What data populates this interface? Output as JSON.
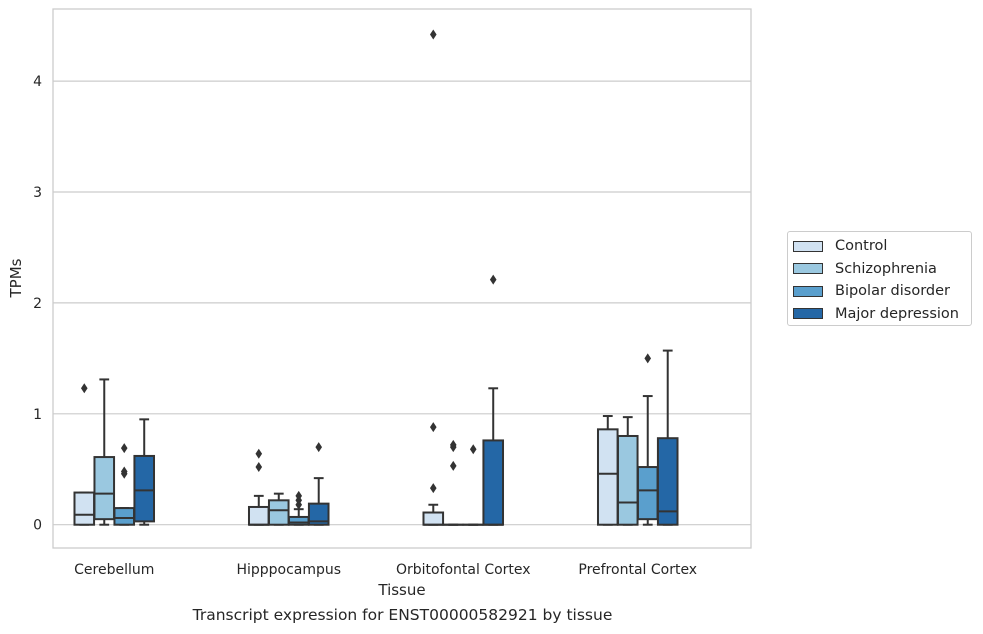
{
  "chart_data": {
    "type": "box",
    "title": "",
    "caption": "Transcript expression for ENST00000582921 by tissue",
    "xlabel": "Tissue",
    "ylabel": "TPMs",
    "ylim": [
      -0.21,
      4.65
    ],
    "yticks": [
      "0",
      "1",
      "2",
      "3",
      "4"
    ],
    "categories": [
      "Cerebellum",
      "Hipppocampus",
      "Orbitofontal Cortex",
      "Prefrontal Cortex"
    ],
    "grid": "horizontal",
    "legend_position": "right",
    "series": [
      {
        "name": "Control",
        "color": "#d1e2f2",
        "boxes": [
          {
            "whislo": 0.0,
            "q1": 0.0,
            "med": 0.09,
            "q3": 0.29,
            "whishi": 0.29,
            "fliers": [
              1.23
            ]
          },
          {
            "whislo": 0.0,
            "q1": 0.0,
            "med": 0.0,
            "q3": 0.16,
            "whishi": 0.26,
            "fliers": [
              0.52,
              0.64
            ]
          },
          {
            "whislo": 0.0,
            "q1": 0.0,
            "med": 0.0,
            "q3": 0.11,
            "whishi": 0.18,
            "fliers": [
              0.33,
              0.88,
              4.42
            ]
          },
          {
            "whislo": 0.0,
            "q1": 0.0,
            "med": 0.46,
            "q3": 0.86,
            "whishi": 0.98,
            "fliers": []
          }
        ]
      },
      {
        "name": "Schizophrenia",
        "color": "#9ac8e0",
        "boxes": [
          {
            "whislo": 0.0,
            "q1": 0.05,
            "med": 0.28,
            "q3": 0.61,
            "whishi": 1.31,
            "fliers": []
          },
          {
            "whislo": 0.0,
            "q1": 0.0,
            "med": 0.13,
            "q3": 0.22,
            "whishi": 0.28,
            "fliers": []
          },
          {
            "whislo": 0.0,
            "q1": 0.0,
            "med": 0.0,
            "q3": 0.0,
            "whishi": 0.0,
            "fliers": [
              0.53,
              0.7,
              0.72
            ]
          },
          {
            "whislo": 0.0,
            "q1": 0.0,
            "med": 0.2,
            "q3": 0.8,
            "whishi": 0.97,
            "fliers": []
          }
        ]
      },
      {
        "name": "Bipolar disorder",
        "color": "#5a9fcd",
        "boxes": [
          {
            "whislo": 0.0,
            "q1": 0.0,
            "med": 0.06,
            "q3": 0.15,
            "whishi": 0.15,
            "fliers": [
              0.46,
              0.48,
              0.69
            ]
          },
          {
            "whislo": 0.0,
            "q1": 0.0,
            "med": 0.02,
            "q3": 0.07,
            "whishi": 0.14,
            "fliers": [
              0.18,
              0.22,
              0.26
            ]
          },
          {
            "whislo": 0.0,
            "q1": 0.0,
            "med": 0.0,
            "q3": 0.0,
            "whishi": 0.0,
            "fliers": [
              0.68
            ]
          },
          {
            "whislo": 0.0,
            "q1": 0.05,
            "med": 0.31,
            "q3": 0.52,
            "whishi": 1.16,
            "fliers": [
              1.5
            ]
          }
        ]
      },
      {
        "name": "Major depression",
        "color": "#2467a6",
        "boxes": [
          {
            "whislo": 0.0,
            "q1": 0.03,
            "med": 0.31,
            "q3": 0.62,
            "whishi": 0.95,
            "fliers": []
          },
          {
            "whislo": 0.0,
            "q1": 0.0,
            "med": 0.03,
            "q3": 0.19,
            "whishi": 0.42,
            "fliers": [
              0.7
            ]
          },
          {
            "whislo": 0.0,
            "q1": 0.0,
            "med": 0.0,
            "q3": 0.76,
            "whishi": 1.23,
            "fliers": [
              2.21
            ]
          },
          {
            "whislo": 0.0,
            "q1": 0.0,
            "med": 0.12,
            "q3": 0.78,
            "whishi": 1.57,
            "fliers": []
          }
        ]
      }
    ]
  }
}
